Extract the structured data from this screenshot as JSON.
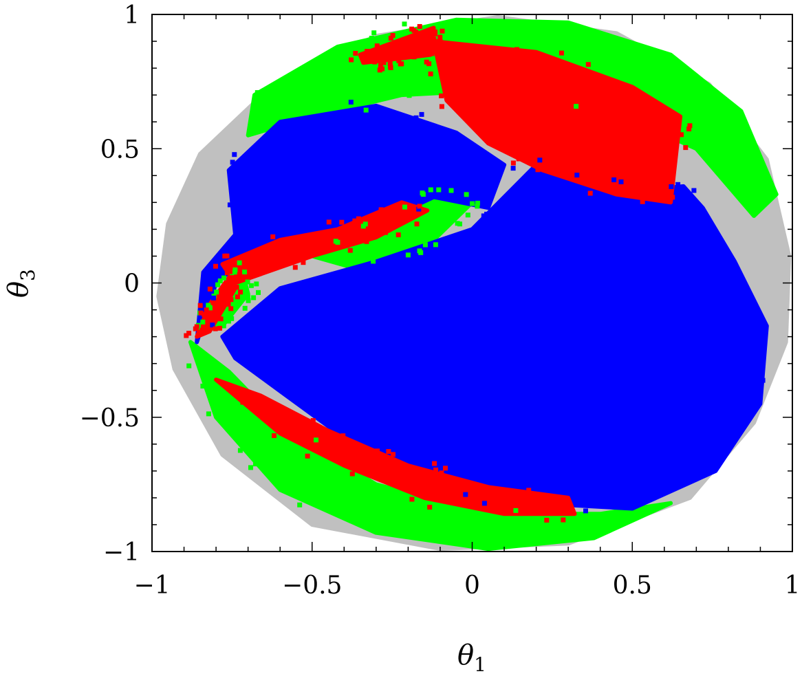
{
  "chart_data": {
    "type": "scatter",
    "title": "",
    "xlabel": "θ1",
    "ylabel": "θ3",
    "xlabel_main": "θ",
    "xlabel_sub": "1",
    "ylabel_main": "θ",
    "ylabel_sub": "3",
    "xlim": [
      -1,
      1
    ],
    "ylim": [
      -1,
      1
    ],
    "grid": false,
    "legend": "none",
    "x_ticks": [
      -1,
      -0.5,
      0,
      0.5,
      1
    ],
    "y_ticks": [
      -1,
      -0.5,
      0,
      0.5,
      1
    ],
    "x_tick_labels": [
      "−1",
      "−0.5",
      "0",
      "0.5",
      "1"
    ],
    "y_tick_labels": [
      "−1",
      "−0.5",
      "0",
      "0.5",
      "1"
    ],
    "series": [
      {
        "color": "#c0c0c0",
        "regions": [
          [
            [
              -0.93,
              -0.32
            ],
            [
              -0.98,
              -0.05
            ],
            [
              -0.95,
              0.22
            ],
            [
              -0.85,
              0.48
            ],
            [
              -0.62,
              0.74
            ],
            [
              -0.3,
              0.92
            ],
            [
              0.08,
              0.99
            ],
            [
              0.45,
              0.93
            ],
            [
              0.74,
              0.74
            ],
            [
              0.92,
              0.46
            ],
            [
              0.99,
              0.1
            ],
            [
              0.98,
              -0.22
            ],
            [
              0.88,
              -0.52
            ],
            [
              0.68,
              -0.8
            ],
            [
              0.3,
              -0.97
            ],
            [
              -0.1,
              -0.99
            ],
            [
              -0.5,
              -0.9
            ],
            [
              -0.78,
              -0.64
            ]
          ]
        ]
      },
      {
        "color": "#00ff00",
        "regions": [
          [
            [
              -0.68,
              0.7
            ],
            [
              -0.42,
              0.88
            ],
            [
              -0.05,
              0.98
            ],
            [
              0.3,
              0.97
            ],
            [
              0.62,
              0.85
            ],
            [
              0.84,
              0.64
            ],
            [
              0.95,
              0.33
            ],
            [
              0.88,
              0.25
            ],
            [
              0.7,
              0.5
            ],
            [
              0.42,
              0.65
            ],
            [
              0.1,
              0.72
            ],
            [
              -0.22,
              0.7
            ],
            [
              -0.5,
              0.62
            ],
            [
              -0.7,
              0.55
            ]
          ],
          [
            [
              -0.88,
              -0.22
            ],
            [
              -0.8,
              -0.5
            ],
            [
              -0.6,
              -0.77
            ],
            [
              -0.3,
              -0.93
            ],
            [
              0.05,
              -0.99
            ],
            [
              0.38,
              -0.95
            ],
            [
              0.62,
              -0.82
            ],
            [
              0.4,
              -0.86
            ],
            [
              0.05,
              -0.86
            ],
            [
              -0.3,
              -0.75
            ],
            [
              -0.58,
              -0.55
            ],
            [
              -0.76,
              -0.33
            ]
          ],
          [
            [
              -0.5,
              0.1
            ],
            [
              -0.28,
              0.22
            ],
            [
              -0.12,
              0.35
            ],
            [
              0.0,
              0.3
            ],
            [
              -0.12,
              0.16
            ],
            [
              -0.38,
              0.06
            ]
          ],
          [
            [
              -0.85,
              -0.18
            ],
            [
              -0.8,
              -0.05
            ],
            [
              -0.72,
              0.05
            ],
            [
              -0.7,
              -0.04
            ],
            [
              -0.78,
              -0.16
            ]
          ]
        ]
      },
      {
        "color": "#0000ff",
        "regions": [
          [
            [
              -0.86,
              -0.22
            ],
            [
              -0.8,
              0.0
            ],
            [
              -0.66,
              0.14
            ],
            [
              -0.5,
              0.14
            ],
            [
              -0.3,
              0.22
            ],
            [
              -0.12,
              0.32
            ],
            [
              0.05,
              0.28
            ],
            [
              0.1,
              0.44
            ],
            [
              -0.05,
              0.56
            ],
            [
              -0.3,
              0.66
            ],
            [
              -0.6,
              0.6
            ],
            [
              -0.76,
              0.42
            ],
            [
              -0.74,
              0.18
            ],
            [
              -0.84,
              0.04
            ]
          ],
          [
            [
              -0.78,
              -0.2
            ],
            [
              -0.6,
              -0.02
            ],
            [
              -0.3,
              0.08
            ],
            [
              0.0,
              0.2
            ],
            [
              0.2,
              0.44
            ],
            [
              0.5,
              0.34
            ],
            [
              0.66,
              0.36
            ],
            [
              0.72,
              0.28
            ],
            [
              0.82,
              0.08
            ],
            [
              0.92,
              -0.16
            ],
            [
              0.9,
              -0.45
            ],
            [
              0.76,
              -0.7
            ],
            [
              0.5,
              -0.84
            ],
            [
              0.2,
              -0.82
            ],
            [
              -0.1,
              -0.76
            ],
            [
              -0.35,
              -0.62
            ],
            [
              -0.58,
              -0.42
            ],
            [
              -0.74,
              -0.28
            ]
          ]
        ]
      },
      {
        "color": "#ff0000",
        "regions": [
          [
            [
              -0.12,
              0.9
            ],
            [
              0.2,
              0.86
            ],
            [
              0.5,
              0.73
            ],
            [
              0.65,
              0.62
            ],
            [
              0.62,
              0.3
            ],
            [
              0.45,
              0.33
            ],
            [
              0.22,
              0.42
            ],
            [
              0.05,
              0.52
            ],
            [
              -0.08,
              0.68
            ]
          ],
          [
            [
              -0.35,
              0.85
            ],
            [
              -0.12,
              0.95
            ],
            [
              -0.13,
              0.85
            ],
            [
              -0.34,
              0.82
            ]
          ],
          [
            [
              -0.78,
              0.07
            ],
            [
              -0.6,
              0.16
            ],
            [
              -0.42,
              0.2
            ],
            [
              -0.22,
              0.3
            ],
            [
              -0.14,
              0.27
            ],
            [
              -0.3,
              0.17
            ],
            [
              -0.5,
              0.1
            ],
            [
              -0.74,
              0.0
            ]
          ],
          [
            [
              -0.86,
              -0.2
            ],
            [
              -0.82,
              -0.08
            ],
            [
              -0.76,
              0.02
            ],
            [
              -0.74,
              -0.02
            ],
            [
              -0.82,
              -0.18
            ]
          ],
          [
            [
              -0.8,
              -0.36
            ],
            [
              -0.6,
              -0.56
            ],
            [
              -0.4,
              -0.68
            ],
            [
              -0.15,
              -0.8
            ],
            [
              0.1,
              -0.86
            ],
            [
              0.32,
              -0.86
            ],
            [
              0.3,
              -0.8
            ],
            [
              0.05,
              -0.76
            ],
            [
              -0.2,
              -0.68
            ],
            [
              -0.45,
              -0.55
            ],
            [
              -0.66,
              -0.42
            ]
          ]
        ]
      }
    ]
  }
}
